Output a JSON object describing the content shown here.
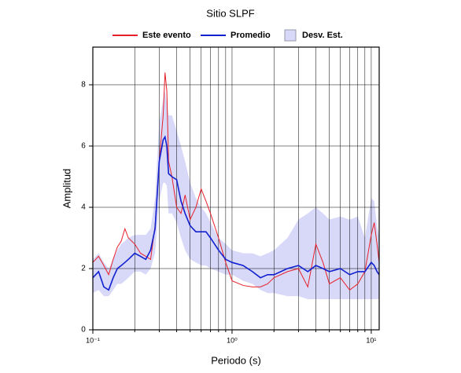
{
  "chart_data": {
    "type": "line",
    "title": "Sitio SLPF",
    "xlabel": "Periodo (s)",
    "ylabel": "Amplitud",
    "xscale": "log",
    "grid": true,
    "legend": "top",
    "x": [
      0.1,
      0.11,
      0.12,
      0.13,
      0.14,
      0.15,
      0.16,
      0.17,
      0.18,
      0.2,
      0.22,
      0.24,
      0.26,
      0.28,
      0.3,
      0.32,
      0.33,
      0.34,
      0.35,
      0.37,
      0.4,
      0.43,
      0.46,
      0.5,
      0.55,
      0.6,
      0.65,
      0.7,
      0.8,
      0.9,
      1.0,
      1.2,
      1.4,
      1.6,
      1.8,
      2.0,
      2.5,
      3,
      3.5,
      4,
      4.5,
      5,
      6,
      7,
      8,
      9,
      10,
      10.5,
      11,
      11.4
    ],
    "series": [
      {
        "name": "Este evento",
        "color": "#e8202a",
        "values": [
          2.2,
          2.4,
          2.1,
          1.8,
          2.3,
          2.7,
          2.9,
          3.3,
          3.0,
          2.8,
          2.5,
          2.4,
          2.3,
          3.4,
          5.5,
          7.0,
          8.4,
          7.8,
          5.5,
          5.0,
          4.0,
          3.8,
          4.4,
          3.6,
          4.0,
          4.6,
          4.2,
          3.8,
          3.0,
          2.2,
          1.6,
          1.45,
          1.4,
          1.4,
          1.5,
          1.7,
          1.9,
          2.0,
          1.4,
          2.8,
          2.2,
          1.5,
          1.7,
          1.3,
          1.5,
          1.9,
          3.1,
          3.5,
          2.8,
          2.2
        ]
      },
      {
        "name": "Promedio",
        "color": "#1020d0",
        "values": [
          1.7,
          1.9,
          1.4,
          1.3,
          1.7,
          2.0,
          2.1,
          2.2,
          2.3,
          2.5,
          2.4,
          2.3,
          2.6,
          3.3,
          5.5,
          6.2,
          6.3,
          6.0,
          5.1,
          5.0,
          4.9,
          4.2,
          3.8,
          3.4,
          3.2,
          3.2,
          3.2,
          3.0,
          2.6,
          2.3,
          2.2,
          2.1,
          1.9,
          1.7,
          1.8,
          1.8,
          2.0,
          2.1,
          1.9,
          2.1,
          2.0,
          1.9,
          2.0,
          1.8,
          1.9,
          1.9,
          2.2,
          2.1,
          1.9,
          1.8
        ]
      },
      {
        "name": "Desv. Est.",
        "color": "#d8d8f8",
        "lower": [
          1.2,
          1.3,
          1.1,
          1.1,
          1.3,
          1.5,
          1.5,
          1.6,
          1.7,
          1.9,
          1.9,
          1.8,
          2.0,
          2.5,
          4.2,
          4.8,
          4.8,
          4.7,
          3.8,
          3.8,
          3.5,
          3.0,
          2.6,
          2.3,
          2.2,
          2.1,
          2.1,
          2.0,
          1.9,
          1.8,
          1.8,
          1.6,
          1.5,
          1.3,
          1.2,
          1.2,
          1.1,
          1.1,
          1.0,
          1.0,
          1.0,
          1.0,
          1.0,
          1.0,
          1.0,
          1.0,
          1.0,
          1.0,
          1.0,
          1.0
        ],
        "upper": [
          2.3,
          2.5,
          2.2,
          2.0,
          2.3,
          2.6,
          2.8,
          2.9,
          3.0,
          3.1,
          3.1,
          3.1,
          3.3,
          4.3,
          6.8,
          7.5,
          7.8,
          7.4,
          7.0,
          7.0,
          6.5,
          6.0,
          5.5,
          4.8,
          4.3,
          4.0,
          3.8,
          3.5,
          3.0,
          2.8,
          2.6,
          2.5,
          2.5,
          2.4,
          2.5,
          2.6,
          3.0,
          3.6,
          3.8,
          4.0,
          3.8,
          3.6,
          3.7,
          3.6,
          3.7,
          3.0,
          4.3,
          4.2,
          3.4,
          3.0
        ]
      }
    ],
    "xlim": [
      0.1,
      11.4
    ],
    "ylim": [
      0,
      9.23
    ],
    "xticks": [
      {
        "value": 0.1,
        "label": "10⁻¹"
      },
      {
        "value": 1,
        "label": "10⁰"
      },
      {
        "value": 10,
        "label": "10¹"
      }
    ],
    "x_minor_ticks": [
      0.2,
      0.3,
      0.4,
      0.5,
      0.6,
      0.7,
      0.8,
      0.9,
      2,
      3,
      4,
      5,
      6,
      7,
      8,
      9
    ],
    "yticks": [
      0,
      2,
      4,
      6,
      8
    ]
  }
}
